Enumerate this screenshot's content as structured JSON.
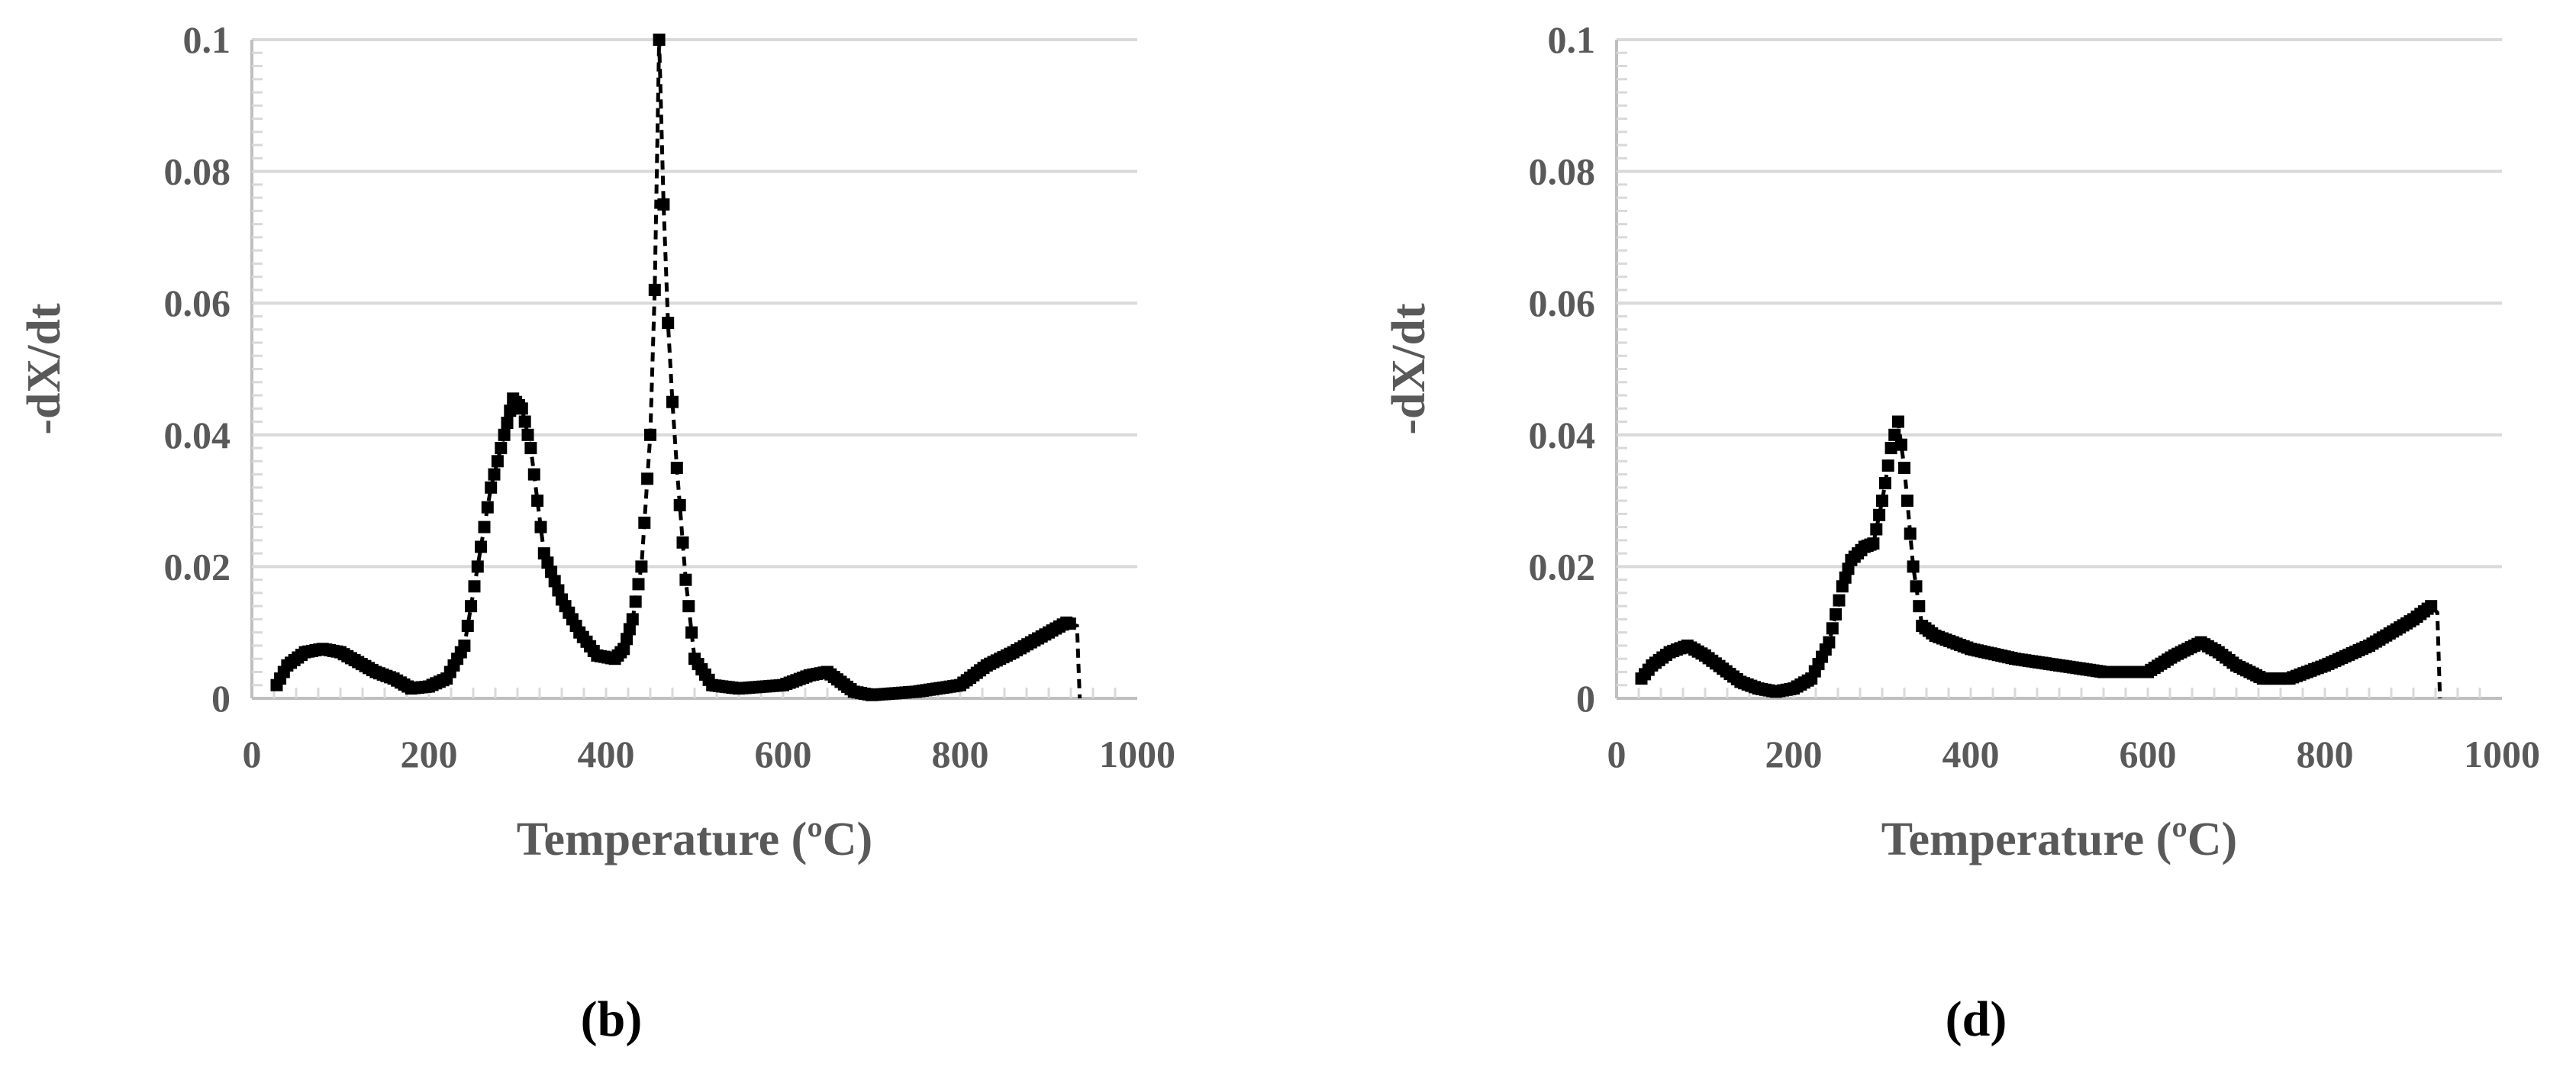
{
  "figure": {
    "colors": {
      "series": "#000000",
      "grid": "#d9d9d9",
      "axis": "#bfbfbf",
      "text": "#595959"
    },
    "panels": [
      {
        "caption": "(b)"
      },
      {
        "caption": "(d)"
      }
    ]
  },
  "chart_data": [
    {
      "type": "line",
      "title": "",
      "xlabel": "Temperature (ºC)",
      "ylabel": "-dX/dt",
      "xlim": [
        0,
        1000
      ],
      "ylim": [
        0,
        0.1
      ],
      "xticks": [
        "0",
        "200",
        "400",
        "600",
        "800",
        "1000"
      ],
      "yticks": [
        "0",
        "0.02",
        "0.04",
        "0.06",
        "0.08",
        "0.1"
      ],
      "grid": "horizontal",
      "legend": "none",
      "series": [
        {
          "marker": "square",
          "line": "dashed",
          "x": [
            28,
            40,
            60,
            80,
            100,
            120,
            140,
            160,
            180,
            200,
            220,
            240,
            255,
            270,
            285,
            295,
            305,
            315,
            330,
            350,
            370,
            390,
            410,
            420,
            430,
            440,
            450,
            455,
            460,
            465,
            470,
            475,
            480,
            490,
            500,
            520,
            550,
            600,
            630,
            650,
            680,
            700,
            750,
            800,
            830,
            860,
            900,
            920,
            932,
            935
          ],
          "y": [
            0.002,
            0.005,
            0.007,
            0.0075,
            0.007,
            0.0055,
            0.004,
            0.003,
            0.0015,
            0.0018,
            0.003,
            0.008,
            0.02,
            0.032,
            0.04,
            0.0455,
            0.044,
            0.038,
            0.022,
            0.015,
            0.01,
            0.0065,
            0.006,
            0.0075,
            0.012,
            0.02,
            0.04,
            0.062,
            0.1,
            0.075,
            0.057,
            0.045,
            0.035,
            0.018,
            0.006,
            0.002,
            0.0015,
            0.002,
            0.0035,
            0.004,
            0.001,
            0.0005,
            0.001,
            0.002,
            0.005,
            0.007,
            0.01,
            0.0115,
            0.011,
            0
          ]
        }
      ]
    },
    {
      "type": "line",
      "title": "",
      "xlabel": "Temperature (ºC)",
      "ylabel": "-dX/dt",
      "xlim": [
        0,
        1000
      ],
      "ylim": [
        0,
        0.1
      ],
      "xticks": [
        "0",
        "200",
        "400",
        "600",
        "800",
        "1000"
      ],
      "yticks": [
        "0",
        "0.02",
        "0.04",
        "0.06",
        "0.08",
        "0.1"
      ],
      "grid": "horizontal",
      "legend": "none",
      "series": [
        {
          "marker": "square",
          "line": "dashed",
          "x": [
            28,
            40,
            60,
            80,
            100,
            120,
            140,
            160,
            180,
            200,
            220,
            240,
            255,
            265,
            280,
            290,
            300,
            310,
            318,
            325,
            335,
            345,
            360,
            400,
            450,
            500,
            550,
            600,
            630,
            660,
            680,
            700,
            730,
            760,
            800,
            850,
            900,
            920,
            927,
            930
          ],
          "y": [
            0.003,
            0.005,
            0.007,
            0.008,
            0.0065,
            0.0045,
            0.0025,
            0.0015,
            0.001,
            0.0015,
            0.003,
            0.0085,
            0.017,
            0.021,
            0.023,
            0.0235,
            0.03,
            0.038,
            0.042,
            0.035,
            0.02,
            0.011,
            0.0095,
            0.0075,
            0.006,
            0.005,
            0.004,
            0.004,
            0.0065,
            0.0085,
            0.007,
            0.005,
            0.003,
            0.003,
            0.005,
            0.008,
            0.012,
            0.014,
            0.013,
            0
          ]
        }
      ]
    }
  ]
}
